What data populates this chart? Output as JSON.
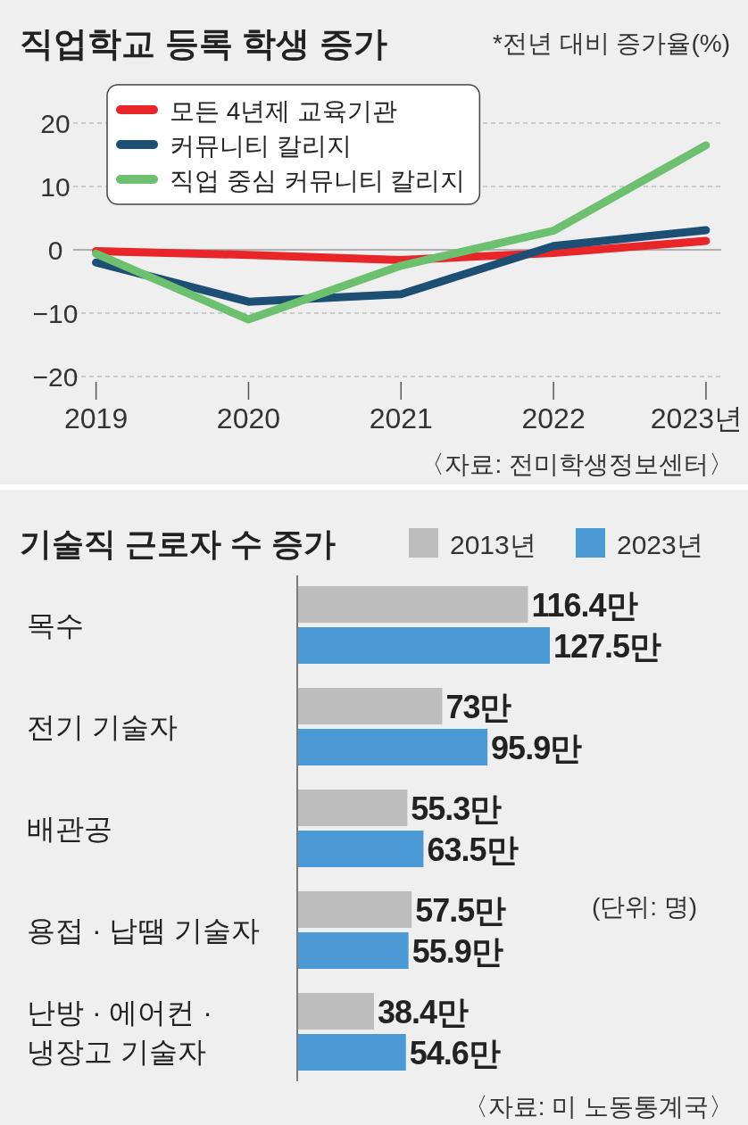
{
  "chart_data": [
    {
      "type": "line",
      "title": "직업학교 등록 학생 증가",
      "subtitle": "*전년 대비 증가율(%)",
      "x": [
        2019,
        2020,
        2021,
        2022,
        2023
      ],
      "xlim": [
        2018.85,
        2023.1
      ],
      "xticks": [
        2019,
        2020,
        2021,
        2022,
        {
          "value": 2023,
          "label": "2023년"
        }
      ],
      "ylim": [
        -20,
        20
      ],
      "yticks": [
        {
          "value": -20,
          "label": "−20"
        },
        {
          "value": -10,
          "label": "−10"
        },
        0,
        10,
        20
      ],
      "grid": "y",
      "legend": "top left",
      "line_style": "solid",
      "annotations": [
        "〈자료: 전미학생정보센터〉"
      ],
      "series": [
        {
          "name": "모든 4년제 교육기관",
          "color": "#e8262a",
          "values": [
            -0.2,
            -0.8,
            -1.6,
            -0.5,
            1.4
          ]
        },
        {
          "name": "커뮤니티 칼리지",
          "color": "#1c4f73",
          "values": [
            -2,
            -8.2,
            -7,
            0.6,
            3.1
          ]
        },
        {
          "name": "직업 중심 커뮤니티 칼리지",
          "color": "#6cc070",
          "values": [
            -0.6,
            -11,
            -2.5,
            3,
            16.5
          ]
        }
      ]
    },
    {
      "type": "bar",
      "orientation": "horizontal",
      "title": "기술직 근로자 수 증가",
      "legend": "top",
      "categories": [
        "목수",
        "전기 기술자",
        "배관공",
        "용접 · 납땜 기술자",
        "난방 · 에어컨 · 냉장고 기술자"
      ],
      "annotations": [
        "(단위: 명)",
        "〈자료: 미 노동통계국〉"
      ],
      "series": [
        {
          "name": "2013년",
          "color": "#bdbdbe",
          "values": [
            116.4,
            73,
            55.3,
            57.5,
            38.4
          ],
          "value_labels": [
            "116.4만",
            "73만",
            "55.3만",
            "57.5만",
            "38.4만"
          ]
        },
        {
          "name": "2023년",
          "color": "#4b9ad6",
          "values": [
            127.5,
            95.9,
            63.5,
            55.9,
            54.6
          ],
          "value_labels": [
            "127.5만",
            "95.9만",
            "63.5만",
            "55.9만",
            "54.6만"
          ]
        }
      ]
    }
  ]
}
